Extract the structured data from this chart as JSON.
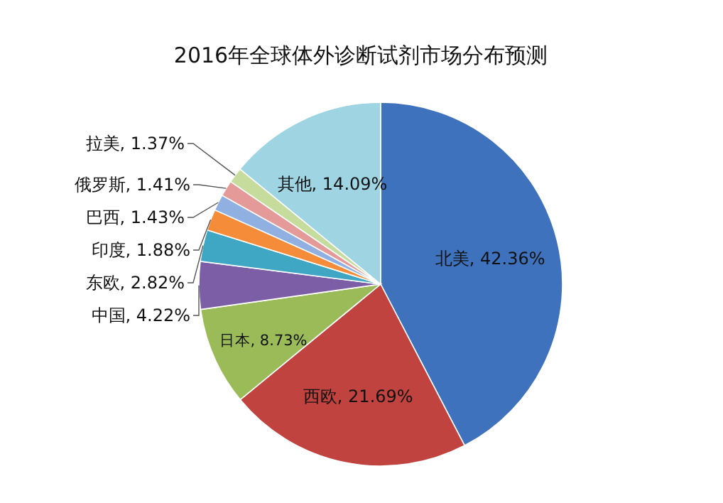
{
  "chart_data": {
    "type": "pie",
    "title": "2016年全球体外诊断试剂市场分布预测",
    "categories": [
      "北美",
      "西欧",
      "日本",
      "中国",
      "东欧",
      "印度",
      "巴西",
      "俄罗斯",
      "拉美",
      "其他"
    ],
    "values": [
      42.36,
      21.69,
      8.73,
      4.22,
      2.82,
      1.88,
      1.43,
      1.41,
      1.37,
      14.09
    ],
    "colors": [
      "#3f72bd",
      "#c0433f",
      "#9bbb59",
      "#7b5ea6",
      "#3fa7c4",
      "#f58c3a",
      "#8fb0e0",
      "#e59a9a",
      "#c5dc9c",
      "#9fd4e2"
    ],
    "value_labels": [
      "42.36%",
      "21.69%",
      "8.73%",
      "4.22%",
      "2.82%",
      "1.88%",
      "1.43%",
      "1.41%",
      "1.37%",
      "14.09%"
    ],
    "data_labels": true,
    "legend": false
  }
}
